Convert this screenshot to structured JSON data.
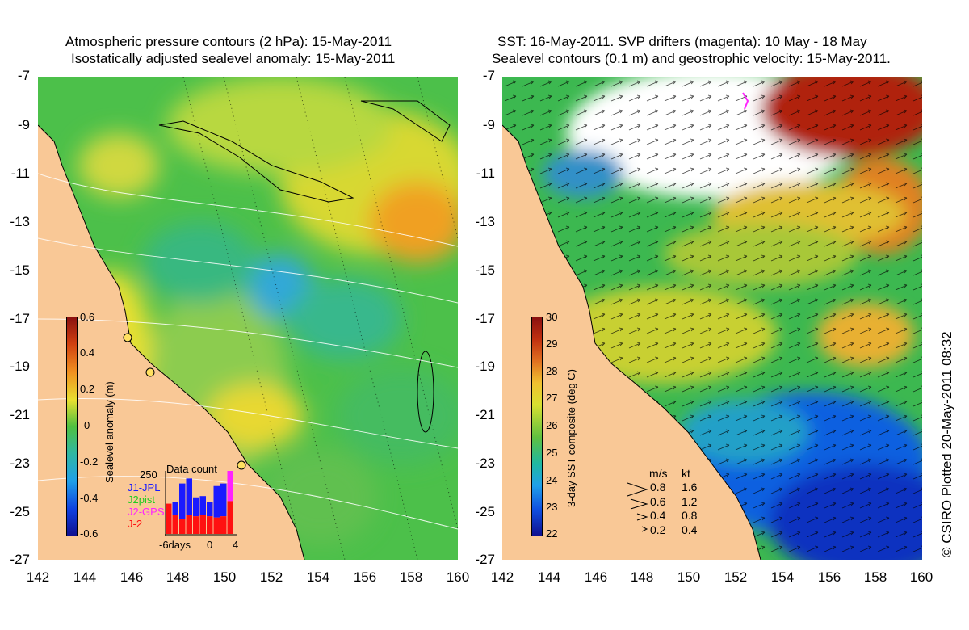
{
  "left_title": {
    "line1": "Atmospheric pressure contours (2 hPa): 15-May-2011",
    "line2": "Isostatically adjusted sealevel anomaly: 15-May-2011"
  },
  "right_title": {
    "line1": "SST: 16-May-2011. SVP drifters (magenta): 10 May - 18 May",
    "line2": "Sealevel contours (0.1 m) and geostrophic velocity: 15-May-2011."
  },
  "y_ticks": [
    "-7",
    "-9",
    "-11",
    "-13",
    "-15",
    "-17",
    "-19",
    "-21",
    "-23",
    "-25",
    "-27"
  ],
  "x_ticks": [
    "142",
    "144",
    "146",
    "148",
    "150",
    "152",
    "154",
    "156",
    "158",
    "160"
  ],
  "left_colorbar": {
    "label": "Sealevel anomaly (m)",
    "ticks": [
      "0.6",
      "0.4",
      "0.2",
      "0",
      "-0.2",
      "-0.4",
      "-0.6"
    ]
  },
  "right_colorbar": {
    "label": "3-day SST composite (deg C)",
    "ticks": [
      "30",
      "29",
      "28",
      "27",
      "26",
      "25",
      "24",
      "23",
      "22"
    ]
  },
  "data_count_inset": {
    "title": "Data count",
    "max_label": "250",
    "legend": [
      {
        "name": "J1-JPL",
        "color": "#1a1aff"
      },
      {
        "name": "J2pist",
        "color": "#22cc22"
      },
      {
        "name": "J2-GPS",
        "color": "#ff22ff"
      },
      {
        "name": "J-2",
        "color": "#ff1111"
      }
    ],
    "x_labels": [
      "-6days",
      "0",
      "4"
    ],
    "bars": [
      {
        "total": 120,
        "red": 120
      },
      {
        "total": 125,
        "red": 75
      },
      {
        "total": 200,
        "red": 60
      },
      {
        "total": 220,
        "red": 75
      },
      {
        "total": 145,
        "red": 70
      },
      {
        "total": 150,
        "red": 75
      },
      {
        "total": 125,
        "red": 70
      },
      {
        "total": 190,
        "red": 65
      },
      {
        "total": 200,
        "red": 70
      },
      {
        "total": 250,
        "red": 130
      }
    ]
  },
  "velocity_legend": {
    "header_ms": "m/s",
    "header_kt": "kt",
    "rows": [
      {
        "ms": "0.8",
        "kt": "1.6"
      },
      {
        "ms": "0.6",
        "kt": "1.2"
      },
      {
        "ms": "0.4",
        "kt": "0.8"
      },
      {
        "ms": "0.2",
        "kt": "0.4"
      }
    ]
  },
  "credit": "© CSIRO Plotted 20-May-2011 08:32",
  "colors": {
    "land": "#f9c896",
    "drifter": "#ff22ff"
  }
}
